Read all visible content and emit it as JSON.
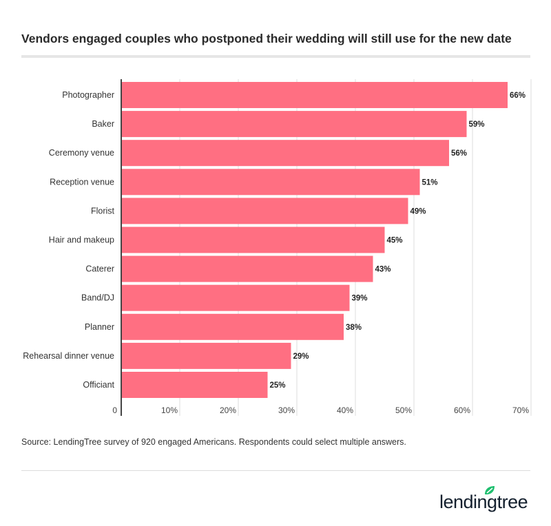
{
  "title": "Vendors engaged couples who postponed their wedding will still use for the new date",
  "source": "Source: LendingTree survey of 920 engaged Americans. Respondents could select multiple answers.",
  "logo_text": "lendingtree",
  "colors": {
    "bar": "#ff6f82",
    "grid": "#dddddd",
    "axis": "#444444",
    "logo_leaf": "#1fbf6f"
  },
  "chart_data": {
    "type": "bar",
    "orientation": "horizontal",
    "categories": [
      "Photographer",
      "Baker",
      "Ceremony venue",
      "Reception venue",
      "Florist",
      "Hair and makeup",
      "Caterer",
      "Band/DJ",
      "Planner",
      "Rehearsal dinner venue",
      "Officiant"
    ],
    "values": [
      66,
      59,
      56,
      51,
      49,
      45,
      43,
      39,
      38,
      29,
      25
    ],
    "data_labels": [
      "66%",
      "59%",
      "56%",
      "51%",
      "49%",
      "45%",
      "43%",
      "39%",
      "38%",
      "29%",
      "25%"
    ],
    "xlim": [
      0,
      70
    ],
    "x_ticks": [
      0,
      10,
      20,
      30,
      40,
      50,
      60,
      70
    ],
    "x_tick_labels": [
      "0",
      "10%",
      "20%",
      "30%",
      "40%",
      "50%",
      "60%",
      "70%"
    ],
    "grid": "vertical",
    "legend": "none"
  }
}
